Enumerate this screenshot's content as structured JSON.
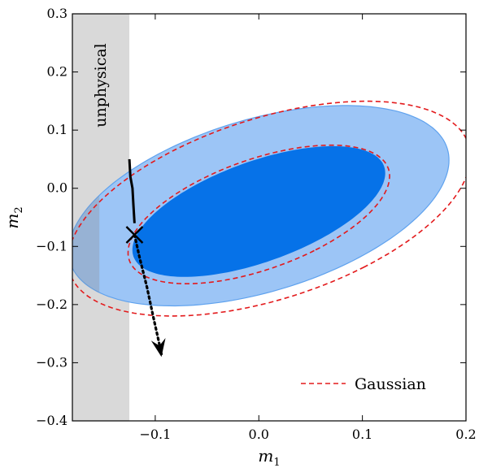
{
  "chart_data": {
    "type": "contour",
    "title": "",
    "xlabel": {
      "base": "m",
      "sub": "1"
    },
    "ylabel": {
      "base": "m",
      "sub": "2"
    },
    "xlim": [
      -0.18,
      0.2
    ],
    "ylim": [
      -0.4,
      0.3
    ],
    "xticks": [
      -0.1,
      0.0,
      0.1,
      0.2
    ],
    "xtick_labels": [
      "−0.1",
      "0.0",
      "0.1",
      "0.2"
    ],
    "yticks": [
      -0.4,
      -0.3,
      -0.2,
      -0.1,
      0.0,
      0.1,
      0.2,
      0.3
    ],
    "ytick_labels": [
      "−0.4",
      "−0.3",
      "−0.2",
      "−0.1",
      "0.0",
      "0.1",
      "0.2",
      "0.3"
    ],
    "unphysical_region": {
      "label": "unphysical",
      "x_range": [
        -0.18,
        -0.125
      ],
      "color": "#d9d9d9"
    },
    "contours": [
      {
        "level": "outer",
        "center": [
          0.0,
          -0.03
        ],
        "semi_axes": [
          0.131,
          0.215
        ],
        "rotation_deg": 49,
        "color": "#9cc5f6",
        "edge": "#5fa2ee"
      },
      {
        "level": "inner",
        "center": [
          0.0,
          -0.04
        ],
        "semi_axes": [
          0.075,
          0.148
        ],
        "rotation_deg": 49,
        "color": "#0672e8"
      }
    ],
    "gaussian_contours": [
      {
        "level": "outer",
        "center": [
          0.01,
          -0.035
        ],
        "semi_axes": [
          0.136,
          0.231
        ],
        "rotation_deg": 48
      },
      {
        "level": "inner",
        "center": [
          0.0,
          -0.045
        ],
        "semi_axes": [
          0.082,
          0.153
        ],
        "rotation_deg": 48
      }
    ],
    "marker": {
      "x": -0.12,
      "y": -0.08,
      "symbol": "x"
    },
    "trajectory": {
      "solid": [
        [
          -0.125,
          0.05
        ],
        [
          -0.124,
          0.02
        ],
        [
          -0.122,
          0.0
        ],
        [
          -0.121,
          -0.03
        ],
        [
          -0.12,
          -0.06
        ]
      ],
      "dotted": [
        [
          -0.12,
          -0.08
        ],
        [
          -0.115,
          -0.12
        ],
        [
          -0.108,
          -0.17
        ],
        [
          -0.102,
          -0.22
        ],
        [
          -0.097,
          -0.26
        ],
        [
          -0.094,
          -0.285
        ]
      ],
      "arrow_head": [
        -0.094,
        -0.29
      ]
    },
    "legend": {
      "position": "bottom-right",
      "entries": [
        {
          "label": "Gaussian",
          "style": "dashed",
          "color": "#e31a1c"
        }
      ]
    }
  }
}
